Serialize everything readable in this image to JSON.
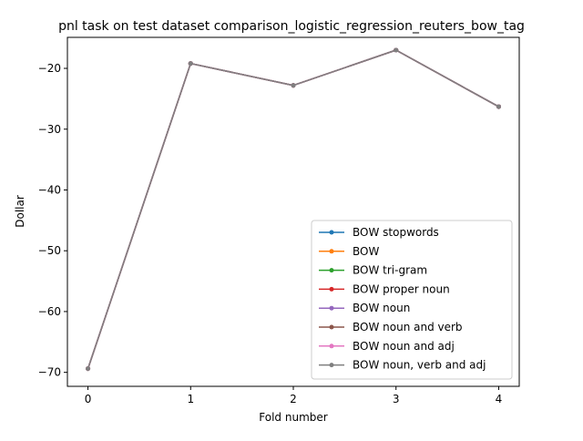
{
  "chart_data": {
    "type": "line",
    "title": "pnl task on test dataset comparison_logistic_regression_reuters_bow_tag",
    "xlabel": "Fold number",
    "ylabel": "Dollar",
    "x": [
      0,
      1,
      2,
      3,
      4
    ],
    "xticks": [
      0,
      1,
      2,
      3,
      4
    ],
    "yticks": [
      -20,
      -30,
      -40,
      -50,
      -60,
      -70
    ],
    "xlim": [
      -0.2,
      4.2
    ],
    "ylim": [
      -72.3,
      -14.9
    ],
    "grid": false,
    "legend_position": "lower-right",
    "series": [
      {
        "name": "BOW stopwords",
        "color": "#1f77b4",
        "values": [
          -69.4,
          -19.2,
          -22.8,
          -17.0,
          -26.3
        ]
      },
      {
        "name": "BOW",
        "color": "#ff7f0e",
        "values": [
          -69.4,
          -19.2,
          -22.8,
          -17.0,
          -26.3
        ]
      },
      {
        "name": "BOW tri-gram",
        "color": "#2ca02c",
        "values": [
          -69.4,
          -19.2,
          -22.8,
          -17.0,
          -26.3
        ]
      },
      {
        "name": "BOW proper noun",
        "color": "#d62728",
        "values": [
          -69.4,
          -19.2,
          -22.8,
          -17.0,
          -26.3
        ]
      },
      {
        "name": "BOW noun",
        "color": "#9467bd",
        "values": [
          -69.4,
          -19.2,
          -22.8,
          -17.0,
          -26.3
        ]
      },
      {
        "name": "BOW noun and verb",
        "color": "#8c564b",
        "values": [
          -69.4,
          -19.2,
          -22.8,
          -17.0,
          -26.3
        ]
      },
      {
        "name": "BOW noun and adj",
        "color": "#e377c2",
        "values": [
          -69.4,
          -19.2,
          -22.8,
          -17.0,
          -26.3
        ]
      },
      {
        "name": "BOW noun, verb and adj",
        "color": "#7f7f7f",
        "values": [
          -69.4,
          -19.2,
          -22.8,
          -17.0,
          -26.3
        ]
      }
    ]
  }
}
